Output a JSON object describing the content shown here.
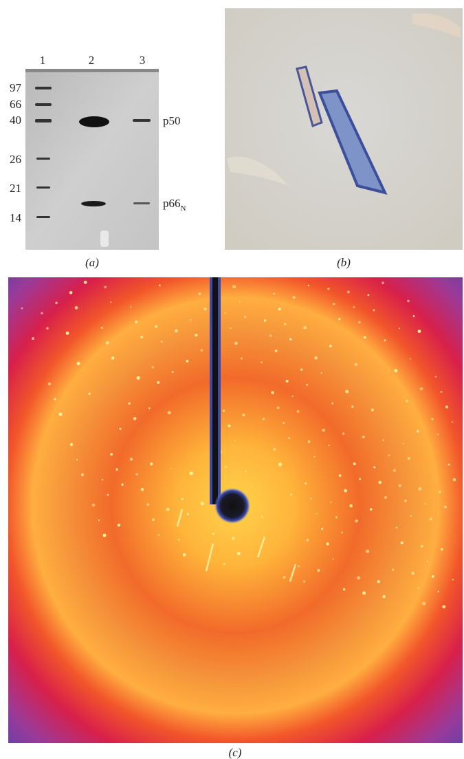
{
  "panel_a": {
    "lanes": [
      "1",
      "2",
      "3"
    ],
    "markers": [
      "97",
      "66",
      "40",
      "26",
      "21",
      "14"
    ],
    "band_labels": [
      {
        "text": "p50"
      },
      {
        "text": "p66",
        "subscript": "N"
      }
    ],
    "caption": "(a)"
  },
  "panel_b": {
    "caption": "(b)"
  },
  "panel_c": {
    "caption": "(c)"
  }
}
